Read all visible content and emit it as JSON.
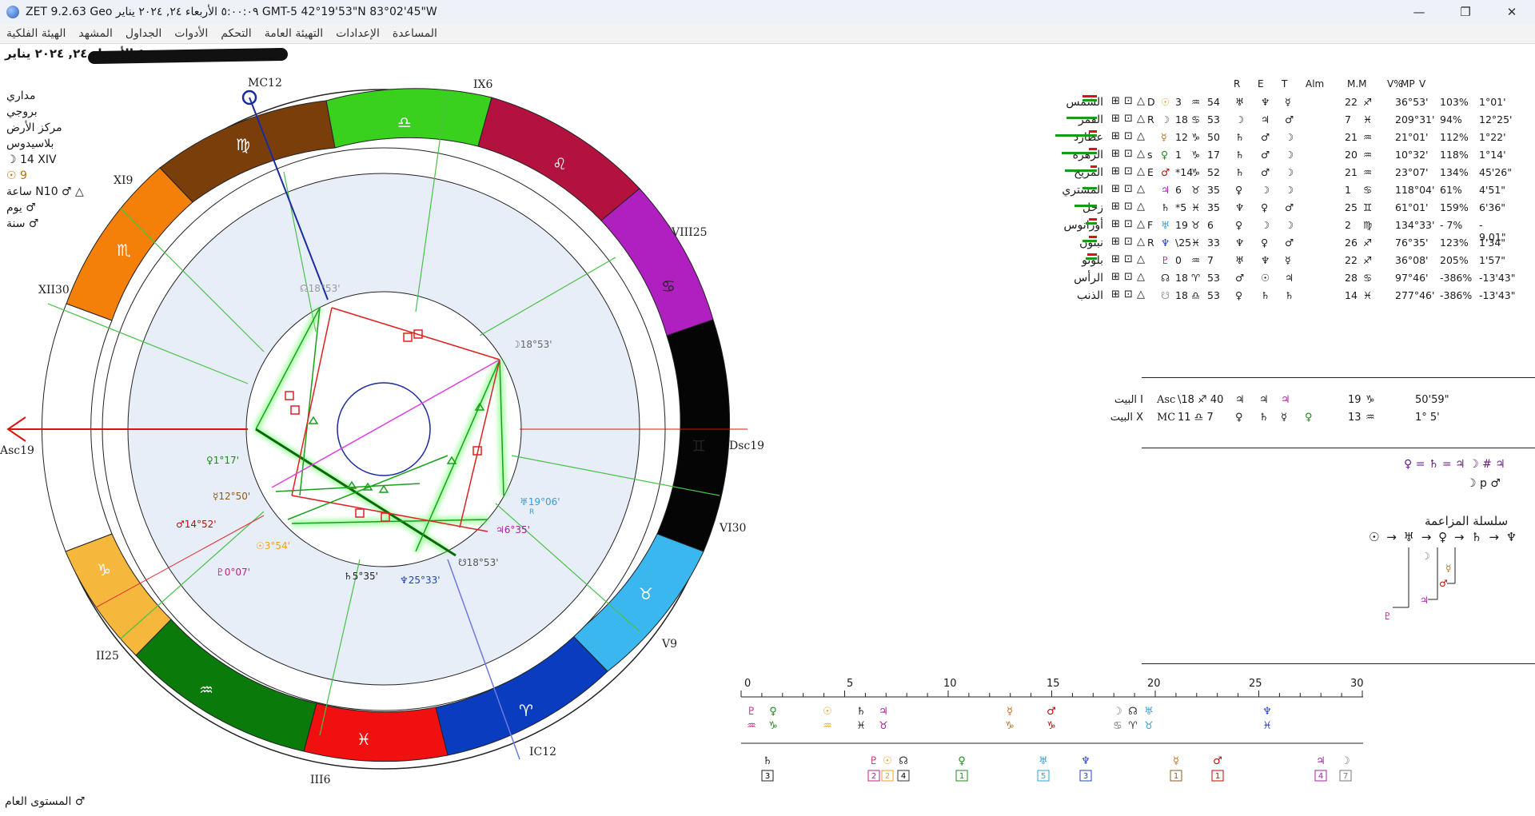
{
  "window": {
    "title": "ZET 9.2.63 Geo  ٥:٠٠:٠٩  الأربعاء  ٢٤, ٢٠٢٤ يناير  GMT-5 42°19'53\"N  83°02'45\"W",
    "minimize": "—",
    "maximize": "❐",
    "close": "✕"
  },
  "menu": [
    "المساعدة",
    "الإعدادات",
    "التهيئة العامة",
    "التحكم",
    "الأدوات",
    "الجداول",
    "المشهد",
    "الهيئة الفلكية"
  ],
  "header_line": "٥:٠٠:٠٩  الأربعاء  ٢٤, ٢٠٢٤ يناير",
  "chart_info": [
    "مداري",
    "بروجي",
    "مركز الأرض",
    "بلاسيدوس"
  ],
  "moon_line": "☽ 14 XIV",
  "sun_line": "☉ 9",
  "hour_line": "ساعة N10 ♂ △",
  "day_line": "يوم ♂",
  "year_line": "سنة ♂",
  "house_labels": {
    "mc": "MC12",
    "ix": "IX6",
    "viii": "VIII25",
    "dsc": "Dsc19",
    "vi": "VI30",
    "v": "V9",
    "ic": "IC12",
    "iii": "III6",
    "ii": "II25",
    "asc": "Asc19",
    "xii": "XII30",
    "xi": "XI9"
  },
  "planet_labels": {
    "node_top": "☊18°53'",
    "moon": "☽18°53'",
    "venus": "♀1°17'",
    "mercury": "☿12°50'",
    "mars": "♂14°52'",
    "sun": "☉3°54'",
    "pluto": "♇0°07'",
    "saturn": "♄5°35'",
    "neptune": "♆25°33'",
    "node_bottom": "☋18°53'",
    "uranus": "♅19°06'",
    "uranus_r": "R",
    "jupiter": "♃6°35'"
  },
  "table_headers": [
    "R",
    "E",
    "T",
    "Alm",
    "M.M",
    "V%",
    "MP",
    "V"
  ],
  "planets": [
    {
      "name": "الشمس",
      "glyph": "☉",
      "color": "#f0a020",
      "dignity": "D",
      "pos": "3",
      "sign": "♒",
      "min": "54",
      "r": "♅",
      "e": "♆",
      "t": "☿",
      "mm": "22",
      "mmsign": "♐",
      "deg": "36°53'",
      "pct": "103%",
      "spd": "1°01'"
    },
    {
      "name": "القمر",
      "glyph": "☽",
      "color": "#555555",
      "dignity": "R",
      "pos": "18",
      "sign": "♋",
      "min": "53",
      "r": "☽",
      "e": "♃",
      "t": "♂",
      "mm": "7",
      "mmsign": "♓",
      "deg": "209°31'",
      "pct": "94%",
      "spd": "12°25'"
    },
    {
      "name": "عطارد",
      "glyph": "☿",
      "color": "#c07020",
      "dignity": "",
      "pos": "12",
      "sign": "♑",
      "min": "50",
      "r": "♄",
      "e": "♂",
      "t": "☽",
      "mm": "21",
      "mmsign": "♒",
      "deg": "21°01'",
      "pct": "112%",
      "spd": "1°22'"
    },
    {
      "name": "الزهرة",
      "glyph": "♀",
      "color": "#1a8a1a",
      "dignity": "s",
      "pos": "1",
      "sign": "♑",
      "min": "17",
      "r": "♄",
      "e": "♂",
      "t": "☽",
      "mm": "20",
      "mmsign": "♒",
      "deg": "10°32'",
      "pct": "118%",
      "spd": "1°14'"
    },
    {
      "name": "المريخ",
      "glyph": "♂",
      "color": "#d00000",
      "dignity": "E",
      "pos": "*14",
      "sign": "♑",
      "min": "52",
      "r": "♄",
      "e": "♂",
      "t": "☽",
      "mm": "21",
      "mmsign": "♒",
      "deg": "23°07'",
      "pct": "134%",
      "spd": "45'26\""
    },
    {
      "name": "المشتري",
      "glyph": "♃",
      "color": "#a020a0",
      "dignity": "",
      "pos": "6",
      "sign": "♉",
      "min": "35",
      "r": "♀",
      "e": "☽",
      "t": "☽",
      "mm": "1",
      "mmsign": "♋",
      "deg": "118°04'",
      "pct": "61%",
      "spd": "4'51\""
    },
    {
      "name": "زحل",
      "glyph": "♄",
      "color": "#222222",
      "dignity": "",
      "pos": "*5",
      "sign": "♓",
      "min": "35",
      "r": "♆",
      "e": "♀",
      "t": "♂",
      "mm": "25",
      "mmsign": "♊",
      "deg": "61°01'",
      "pct": "159%",
      "spd": "6'36\""
    },
    {
      "name": "أورانوس",
      "glyph": "♅",
      "color": "#30a0e0",
      "dignity": "F",
      "pos": "19",
      "sign": "♉",
      "min": "6",
      "r": "♀",
      "e": "☽",
      "t": "☽",
      "mm": "2",
      "mmsign": "♍",
      "deg": "134°33'",
      "pct": "- 7%",
      "spd": "- 9.01\""
    },
    {
      "name": "نبتون",
      "glyph": "♆",
      "color": "#2040c0",
      "dignity": "R",
      "pos": "\\25",
      "sign": "♓",
      "min": "33",
      "r": "♆",
      "e": "♀",
      "t": "♂",
      "mm": "26",
      "mmsign": "♐",
      "deg": "76°35'",
      "pct": "123%",
      "spd": "1'34\""
    },
    {
      "name": "بلوتو",
      "glyph": "♇",
      "color": "#c02080",
      "dignity": "",
      "pos": "0",
      "sign": "♒",
      "min": "7",
      "r": "♅",
      "e": "♆",
      "t": "☿",
      "mm": "22",
      "mmsign": "♐",
      "deg": "36°08'",
      "pct": "205%",
      "spd": "1'57\""
    },
    {
      "name": "الرأس",
      "glyph": "☊",
      "color": "#333333",
      "dignity": "",
      "pos": "18",
      "sign": "♈",
      "min": "53",
      "r": "♂",
      "e": "☉",
      "t": "♃",
      "mm": "28",
      "mmsign": "♋",
      "deg": "97°46'",
      "pct": "-386%",
      "spd": "-13'43\""
    },
    {
      "name": "الذنب",
      "glyph": "☋",
      "color": "#999999",
      "dignity": "",
      "pos": "18",
      "sign": "♎",
      "min": "53",
      "r": "♀",
      "e": "♄",
      "t": "♄",
      "mm": "14",
      "mmsign": "♓",
      "deg": "277°46'",
      "pct": "-386%",
      "spd": "-13'43\""
    }
  ],
  "houses": [
    {
      "name": "البيت I",
      "tag": "Asc",
      "pos": "\\18 ♐ 40",
      "r": "♃",
      "e": "♃",
      "t": "♃",
      "mm": "19",
      "mmsign": "♑",
      "deg": "50'59\""
    },
    {
      "name": "البيت X",
      "tag": "MC",
      "pos": "11 ♎ 7",
      "r": "♀",
      "e": "♄",
      "t": "☿",
      "alm": "♀",
      "mm": "13",
      "mmsign": "♒",
      "deg": "1° 5'"
    }
  ],
  "equation_line": "♀ = ♄ = ♃  ☽ # ♃",
  "equation_line2": "☽ p ♂",
  "reception_title": "سلسلة المزاعمة",
  "reception_chain": "☉ → ♅ → ♀ → ♄ → ♆",
  "scale_ticks": [
    "0",
    "5",
    "10",
    "15",
    "20",
    "25",
    "30"
  ],
  "bottom_label": "المستوى العام  ♂"
}
